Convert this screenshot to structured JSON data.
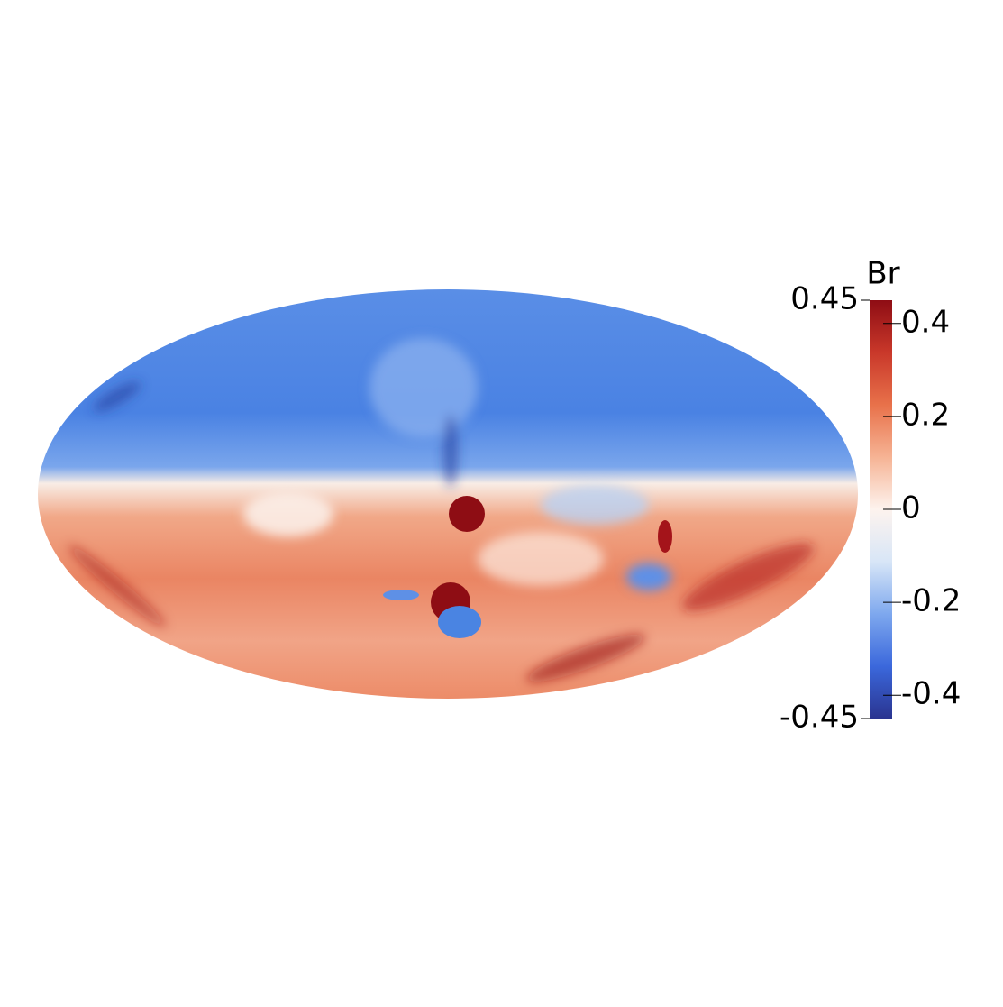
{
  "chart_data": {
    "type": "colormap",
    "colorbar": {
      "title": "Br",
      "lim": [
        -0.45,
        0.45
      ],
      "range_labels": [
        0.45,
        -0.45
      ],
      "ticks": [
        0.4,
        0.2,
        0,
        -0.2,
        -0.4
      ],
      "colormap": [
        "#2a3490",
        "#3b68dc",
        "#7ea8ee",
        "#d8e6f7",
        "#fdf3ee",
        "#f6b394",
        "#e8714a",
        "#c9382a",
        "#8e0d14"
      ]
    }
  }
}
